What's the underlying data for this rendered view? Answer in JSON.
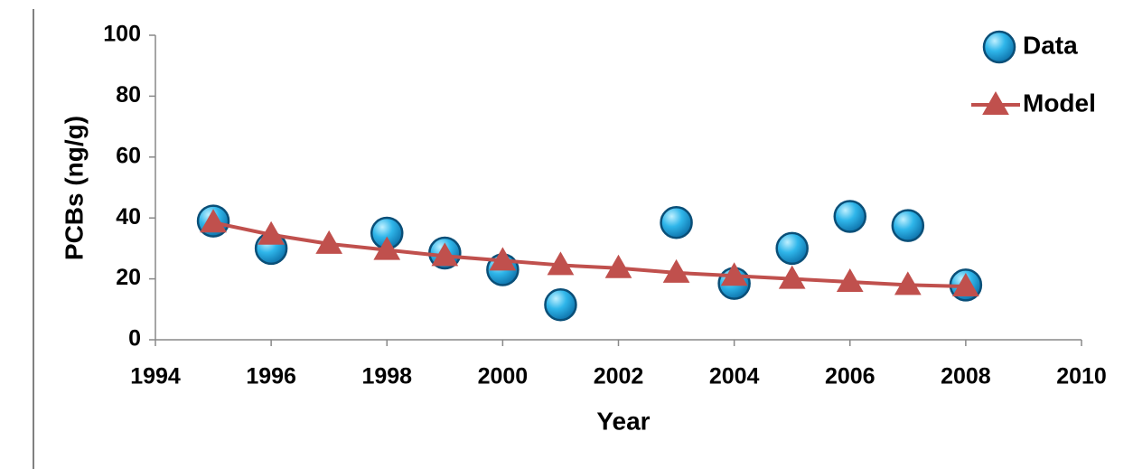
{
  "chart_data": {
    "type": "line",
    "x_label": "Year",
    "y_label": "PCBs  (ng/g)",
    "xlim": [
      1994,
      2010
    ],
    "xticks": [
      1994,
      1996,
      1998,
      2000,
      2002,
      2004,
      2006,
      2008,
      2010
    ],
    "ylim": [
      0,
      100
    ],
    "yticks": [
      0,
      20,
      40,
      60,
      80,
      100
    ],
    "grid": false,
    "legend": "top-right",
    "series": [
      {
        "name": "Data",
        "color": "#1e9bd7",
        "marker": "circle",
        "line": false,
        "x": [
          1995,
          1996,
          1998,
          1999,
          2000,
          2001,
          2003,
          2004,
          2005,
          2006,
          2007,
          2008
        ],
        "values": [
          39,
          30,
          35,
          28.5,
          23,
          11.5,
          38.5,
          18.5,
          30,
          40.5,
          37.5,
          18
        ]
      },
      {
        "name": "Model",
        "color": "#c0504d",
        "marker": "triangle",
        "line": true,
        "x": [
          1995,
          1996,
          1997,
          1998,
          1999,
          2000,
          2001,
          2002,
          2003,
          2004,
          2005,
          2006,
          2007,
          2008
        ],
        "values": [
          38.5,
          34.5,
          31.5,
          29.5,
          27.5,
          26,
          24.5,
          23.5,
          22,
          21,
          20,
          19,
          18,
          17.5
        ]
      }
    ]
  }
}
